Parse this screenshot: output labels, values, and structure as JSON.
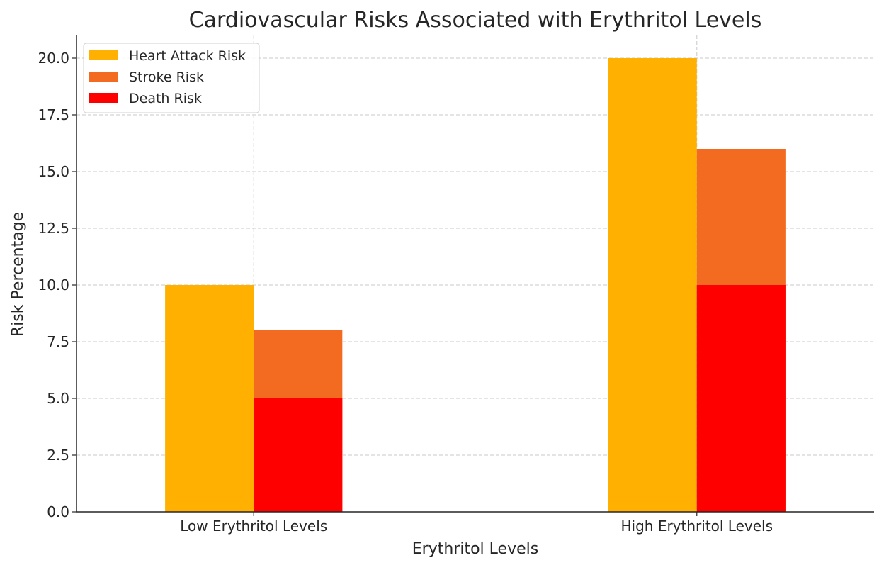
{
  "chart_data": {
    "type": "bar",
    "title": "Cardiovascular Risks Associated with Erythritol Levels",
    "xlabel": "Erythritol Levels",
    "ylabel": "Risk Percentage",
    "categories": [
      "Low Erythritol Levels",
      "High Erythritol Levels"
    ],
    "ylim": [
      0,
      21
    ],
    "yticks": [
      "0.0",
      "2.5",
      "5.0",
      "7.5",
      "10.0",
      "12.5",
      "15.0",
      "17.5",
      "20.0"
    ],
    "grid": true,
    "legend_position": "top-left",
    "series": [
      {
        "name": "Heart Attack Risk",
        "values": [
          10,
          20
        ],
        "color": "#FFB000"
      },
      {
        "name": "Stroke Risk",
        "values": [
          8,
          16
        ],
        "color": "#F26B21"
      },
      {
        "name": "Death Risk",
        "values": [
          5,
          10
        ],
        "color": "#FF0000"
      }
    ]
  }
}
